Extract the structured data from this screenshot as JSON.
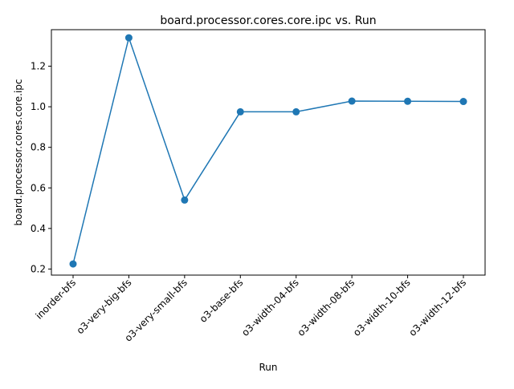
{
  "chart_data": {
    "type": "line",
    "title": "board.processor.cores.core.ipc vs. Run",
    "xlabel": "Run",
    "ylabel": "board.processor.cores.core.ipc",
    "categories": [
      "inorder-bfs",
      "o3-very-big-bfs",
      "o3-very-small-bfs",
      "o3-base-bfs",
      "o3-width-04-bfs",
      "o3-width-08-bfs",
      "o3-width-10-bfs",
      "o3-width-12-bfs"
    ],
    "series": [
      {
        "values": [
          0.225,
          1.34,
          0.54,
          0.975,
          0.975,
          1.028,
          1.027,
          1.026
        ],
        "color": "#1f77b4"
      }
    ],
    "ylim": [
      0.17,
      1.38
    ],
    "yticks": [
      0.2,
      0.4,
      0.6,
      0.8,
      1.0,
      1.2
    ],
    "ytick_labels": [
      "0.2",
      "0.4",
      "0.6",
      "0.8",
      "1.0",
      "1.2"
    ],
    "grid": false,
    "marker": "circle"
  }
}
